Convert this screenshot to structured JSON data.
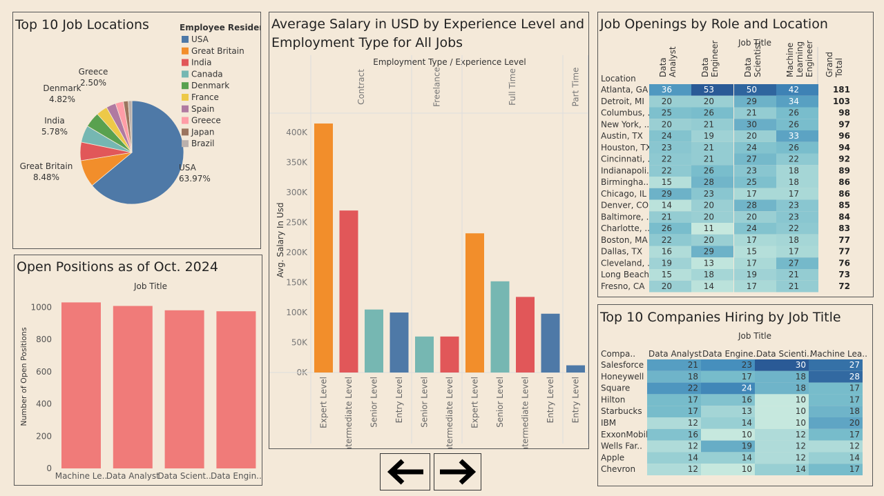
{
  "pie": {
    "title": "Top 10 Job Locations",
    "legend_title": "Employee Residen..",
    "chart_data": {
      "type": "pie",
      "slices": [
        {
          "name": "USA",
          "value": 63.97,
          "label": "63.97%",
          "color": "#4e79a7"
        },
        {
          "name": "Great Britain",
          "value": 8.48,
          "label": "8.48%",
          "color": "#f28e2b"
        },
        {
          "name": "India",
          "value": 5.78,
          "label": "5.78%",
          "color": "#e15759"
        },
        {
          "name": "Canada",
          "value": 5.3,
          "color": "#76b7b2"
        },
        {
          "name": "Denmark",
          "value": 4.82,
          "label": "4.82%",
          "color": "#59a14f"
        },
        {
          "name": "France",
          "value": 3.5,
          "color": "#edc948"
        },
        {
          "name": "Spain",
          "value": 3.0,
          "color": "#b07aa1"
        },
        {
          "name": "Greece",
          "value": 2.5,
          "label": "2.50%",
          "color": "#ff9da7"
        },
        {
          "name": "Japan",
          "value": 1.5,
          "color": "#9c755f"
        },
        {
          "name": "Brazil",
          "value": 1.15,
          "color": "#bab0ac"
        }
      ]
    }
  },
  "open_positions": {
    "title": "Open Positions as of Oct. 2024",
    "chart_data": {
      "type": "bar",
      "xlabel": "Job Title",
      "ylabel": "Number of Open Positions",
      "categories": [
        "Machine Le..",
        "Data Analyst",
        "Data Scient..",
        "Data Engin.."
      ],
      "values": [
        1030,
        1008,
        981,
        975
      ],
      "ylim": [
        0,
        1130
      ],
      "yticks": [
        "0",
        "200",
        "400",
        "600",
        "800",
        "1000"
      ],
      "ytick_values": [
        0,
        200,
        400,
        600,
        800,
        1000
      ],
      "color": "#f07b79"
    }
  },
  "salary": {
    "title_line1": "Average Salary in USD by Experience Level and",
    "title_line2": "Employment Type for All Jobs",
    "header": "Employment Type  /  Experience Level",
    "chart_data": {
      "type": "bar",
      "ylabel": "Avg. Salary In Usd",
      "ylim": [
        0,
        430000
      ],
      "yticks": [
        "0K",
        "50K",
        "100K",
        "150K",
        "200K",
        "250K",
        "300K",
        "350K",
        "400K"
      ],
      "ytick_values": [
        0,
        50000,
        100000,
        150000,
        200000,
        250000,
        300000,
        350000,
        400000
      ],
      "groups": [
        {
          "name": "Contract",
          "bars": [
            {
              "label": "Expert Level",
              "value": 415000,
              "color": "#f28e2b"
            },
            {
              "label": "Intermediate Level",
              "value": 270000,
              "color": "#e15759"
            },
            {
              "label": "Senior Level",
              "value": 105000,
              "color": "#76b7b2"
            },
            {
              "label": "Entry Level",
              "value": 100000,
              "color": "#4e79a7"
            }
          ]
        },
        {
          "name": "Freelance",
          "bars": [
            {
              "label": "Senior Level",
              "value": 60000,
              "color": "#76b7b2"
            },
            {
              "label": "Intermediate Level",
              "value": 60000,
              "color": "#e15759"
            }
          ]
        },
        {
          "name": "Full Time",
          "bars": [
            {
              "label": "Expert Level",
              "value": 232000,
              "color": "#f28e2b"
            },
            {
              "label": "Senior Level",
              "value": 152000,
              "color": "#76b7b2"
            },
            {
              "label": "Intermediate Level",
              "value": 126000,
              "color": "#e15759"
            },
            {
              "label": "Entry Level",
              "value": 98000,
              "color": "#4e79a7"
            }
          ]
        },
        {
          "name": "Part Time",
          "bars": [
            {
              "label": "Entry Level",
              "value": 12000,
              "color": "#4e79a7"
            }
          ]
        }
      ]
    }
  },
  "openings": {
    "title": "Job Openings by Role and Location",
    "header": "Job Title",
    "row_header": "Location",
    "chart_data": {
      "type": "heatmap",
      "columns": [
        "Data Analyst",
        "Data Engineer",
        "Data Scientist",
        "Machine Learning Engineer"
      ],
      "total_label": "Grand Total",
      "rows": [
        {
          "name": "Atlanta, GA",
          "values": [
            36,
            53,
            50,
            42
          ],
          "total": 181
        },
        {
          "name": "Detroit, MI",
          "values": [
            20,
            20,
            29,
            34
          ],
          "total": 103
        },
        {
          "name": "Columbus, ..",
          "values": [
            25,
            26,
            21,
            26
          ],
          "total": 98
        },
        {
          "name": "New York, ..",
          "values": [
            20,
            21,
            30,
            26
          ],
          "total": 97
        },
        {
          "name": "Austin, TX",
          "values": [
            24,
            19,
            20,
            33
          ],
          "total": 96
        },
        {
          "name": "Houston, TX",
          "values": [
            23,
            21,
            24,
            26
          ],
          "total": 94
        },
        {
          "name": "Cincinnati, ..",
          "values": [
            22,
            21,
            27,
            22
          ],
          "total": 92
        },
        {
          "name": "Indianapoli..",
          "values": [
            22,
            26,
            23,
            18
          ],
          "total": 89
        },
        {
          "name": "Birmingha..",
          "values": [
            15,
            28,
            25,
            18
          ],
          "total": 86
        },
        {
          "name": "Chicago, IL",
          "values": [
            29,
            23,
            17,
            17
          ],
          "total": 86
        },
        {
          "name": "Denver, CO",
          "values": [
            14,
            20,
            28,
            23
          ],
          "total": 85
        },
        {
          "name": "Baltimore, ..",
          "values": [
            21,
            20,
            20,
            23
          ],
          "total": 84
        },
        {
          "name": "Charlotte, ..",
          "values": [
            26,
            11,
            24,
            22
          ],
          "total": 83
        },
        {
          "name": "Boston, MA",
          "values": [
            22,
            20,
            17,
            18
          ],
          "total": 77
        },
        {
          "name": "Dallas, TX",
          "values": [
            16,
            29,
            15,
            17
          ],
          "total": 77
        },
        {
          "name": "Cleveland, ..",
          "values": [
            19,
            13,
            17,
            27
          ],
          "total": 76
        },
        {
          "name": "Long Beach..",
          "values": [
            15,
            18,
            19,
            21
          ],
          "total": 73
        },
        {
          "name": "Fresno, CA",
          "values": [
            20,
            14,
            17,
            21
          ],
          "total": 72
        }
      ]
    }
  },
  "companies": {
    "title": "Top 10 Companies Hiring by Job Title",
    "header": "Job Title",
    "row_header": "Compa..",
    "chart_data": {
      "type": "heatmap",
      "columns": [
        "Data Analyst",
        "Data Engine..",
        "Data Scienti..",
        "Machine Lea.."
      ],
      "rows": [
        {
          "name": "Salesforce",
          "values": [
            21,
            23,
            30,
            27
          ]
        },
        {
          "name": "Honeywell",
          "values": [
            18,
            17,
            18,
            28
          ]
        },
        {
          "name": "Square",
          "values": [
            22,
            24,
            18,
            17
          ]
        },
        {
          "name": "Hilton",
          "values": [
            17,
            16,
            10,
            17
          ]
        },
        {
          "name": "Starbucks",
          "values": [
            17,
            13,
            10,
            18
          ]
        },
        {
          "name": "IBM",
          "values": [
            12,
            14,
            10,
            20
          ]
        },
        {
          "name": "ExxonMobil",
          "values": [
            16,
            10,
            12,
            17
          ]
        },
        {
          "name": "Wells Far..",
          "values": [
            12,
            19,
            12,
            12
          ]
        },
        {
          "name": "Apple",
          "values": [
            14,
            14,
            12,
            14
          ]
        },
        {
          "name": "Chevron",
          "values": [
            12,
            10,
            14,
            17
          ]
        }
      ]
    }
  },
  "nav": {
    "back_icon": "arrow-left-icon",
    "next_icon": "arrow-right-icon"
  }
}
